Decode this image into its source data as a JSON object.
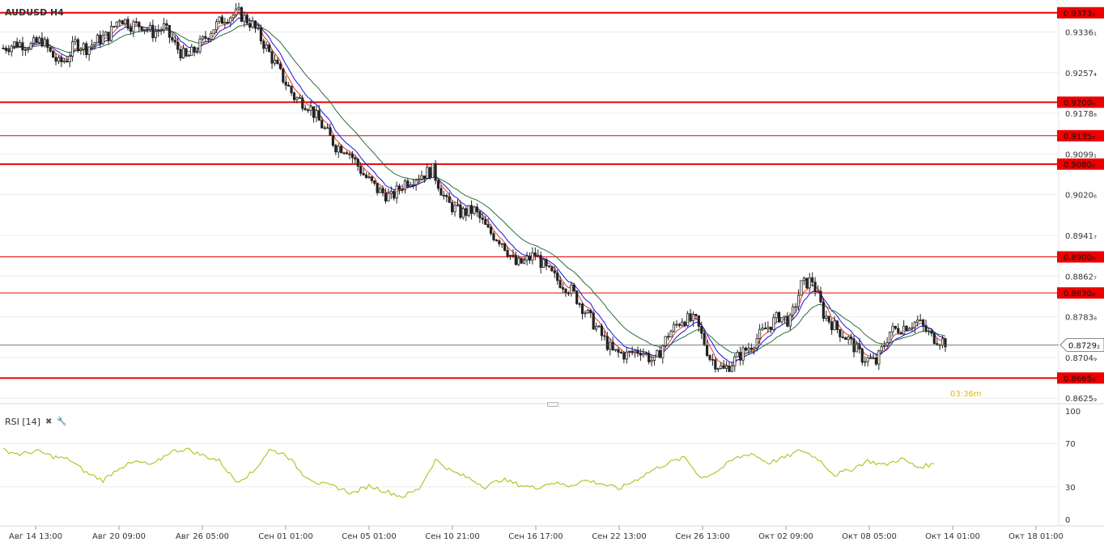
{
  "window": {
    "symbol_title": "AUDUSD H4"
  },
  "timer": "03:36m",
  "rsi": {
    "label": "RSI [14]",
    "close_icon": "close-icon",
    "settings_icon": "wrench-icon"
  },
  "colors": {
    "ma_fast": "#e8391c",
    "ma_mid": "#1414e0",
    "ma_slow": "#2a6e3a",
    "rsi_line": "#a9c41a",
    "level_line": "#ee0000",
    "candle": "#222222",
    "grid": "#ececec"
  },
  "chart_data": [
    {
      "type": "candlestick",
      "title": "AUDUSD H4",
      "ylim": [
        0.862,
        0.9392
      ],
      "y_ticks": [
        "0.9336₁",
        "0.9257₄",
        "0.9178₈",
        "0.9099₁",
        "0.9020₆",
        "0.8941₇",
        "0.8862₇",
        "0.8783₈",
        "0.8704₉",
        "0.8625₉"
      ],
      "y_tick_values": [
        0.93361,
        0.92574,
        0.91788,
        0.90991,
        0.90206,
        0.89417,
        0.88627,
        0.87838,
        0.87049,
        0.86259
      ],
      "x_labels": [
        "Авг 14 13:00",
        "Авг 20 09:00",
        "Авг 26 05:00",
        "Сен 01 01:00",
        "Сен 05 01:00",
        "Сен 10 21:00",
        "Сен 16 17:00",
        "Сен 22 13:00",
        "Сен 26 13:00",
        "Окт 02 09:00",
        "Окт 08 05:00",
        "Окт 14 01:00",
        "Окт 18 01:00"
      ],
      "levels": [
        {
          "label": "0.9373₅",
          "value": 0.93735,
          "thick": true
        },
        {
          "label": "0.9200₀",
          "value": 0.92,
          "thick": true
        },
        {
          "label": "0.9135₀",
          "value": 0.9135,
          "thick": false
        },
        {
          "label": "0.9080₀",
          "value": 0.908,
          "thick": true
        },
        {
          "label": "0.8900₀",
          "value": 0.89,
          "thick": false
        },
        {
          "label": "0.8830₀",
          "value": 0.883,
          "thick": false
        },
        {
          "label": "0.8665₀",
          "value": 0.8665,
          "thick": true
        }
      ],
      "current_price": {
        "label": "0.8729₂",
        "value": 0.87292
      },
      "price_path": [
        [
          0,
          0.9305
        ],
        [
          5,
          0.9315
        ],
        [
          10,
          0.931
        ],
        [
          14,
          0.932
        ],
        [
          17,
          0.9295
        ],
        [
          20,
          0.9275
        ],
        [
          23,
          0.9285
        ],
        [
          26,
          0.9315
        ],
        [
          30,
          0.9305
        ],
        [
          34,
          0.932
        ],
        [
          38,
          0.933
        ],
        [
          42,
          0.9365
        ],
        [
          46,
          0.935
        ],
        [
          50,
          0.935
        ],
        [
          54,
          0.9335
        ],
        [
          58,
          0.9345
        ],
        [
          62,
          0.931
        ],
        [
          66,
          0.9285
        ],
        [
          70,
          0.9305
        ],
        [
          75,
          0.934
        ],
        [
          80,
          0.9365
        ],
        [
          85,
          0.9372
        ],
        [
          90,
          0.935
        ],
        [
          95,
          0.9305
        ],
        [
          100,
          0.9255
        ],
        [
          105,
          0.921
        ],
        [
          110,
          0.9195
        ],
        [
          115,
          0.9155
        ],
        [
          120,
          0.9115
        ],
        [
          124,
          0.911
        ],
        [
          130,
          0.906
        ],
        [
          135,
          0.903
        ],
        [
          140,
          0.9015
        ],
        [
          145,
          0.9045
        ],
        [
          150,
          0.9058
        ],
        [
          155,
          0.9068
        ],
        [
          160,
          0.9005
        ],
        [
          165,
          0.8985
        ],
        [
          170,
          0.899
        ],
        [
          175,
          0.895
        ],
        [
          180,
          0.893
        ],
        [
          185,
          0.8885
        ],
        [
          188,
          0.889
        ],
        [
          192,
          0.8905
        ],
        [
          196,
          0.8875
        ],
        [
          200,
          0.8855
        ],
        [
          205,
          0.8835
        ],
        [
          210,
          0.8795
        ],
        [
          215,
          0.8755
        ],
        [
          220,
          0.8715
        ],
        [
          225,
          0.871
        ],
        [
          230,
          0.872
        ],
        [
          235,
          0.8695
        ],
        [
          240,
          0.875
        ],
        [
          245,
          0.878
        ],
        [
          250,
          0.8775
        ],
        [
          255,
          0.8705
        ],
        [
          260,
          0.868
        ],
        [
          265,
          0.8705
        ],
        [
          270,
          0.873
        ],
        [
          275,
          0.876
        ],
        [
          280,
          0.8785
        ],
        [
          284,
          0.8775
        ],
        [
          288,
          0.8845
        ],
        [
          292,
          0.8855
        ],
        [
          296,
          0.879
        ],
        [
          300,
          0.8765
        ],
        [
          305,
          0.874
        ],
        [
          310,
          0.8705
        ],
        [
          315,
          0.8695
        ],
        [
          320,
          0.8755
        ],
        [
          325,
          0.8765
        ],
        [
          330,
          0.8775
        ],
        [
          335,
          0.8745
        ],
        [
          340,
          0.8735
        ]
      ],
      "rsi_series": {
        "name": "RSI [14]",
        "ylim": [
          0,
          100
        ],
        "y_ticks": [
          "100",
          "70",
          "30",
          "0"
        ],
        "y_tick_values": [
          100,
          70,
          30,
          0
        ],
        "values": [
          [
            0,
            64
          ],
          [
            6,
            60
          ],
          [
            12,
            63
          ],
          [
            18,
            58
          ],
          [
            24,
            55
          ],
          [
            30,
            43
          ],
          [
            36,
            36
          ],
          [
            42,
            48
          ],
          [
            48,
            53
          ],
          [
            54,
            50
          ],
          [
            60,
            62
          ],
          [
            66,
            65
          ],
          [
            72,
            59
          ],
          [
            78,
            54
          ],
          [
            84,
            35
          ],
          [
            90,
            43
          ],
          [
            96,
            64
          ],
          [
            102,
            60
          ],
          [
            108,
            42
          ],
          [
            114,
            33
          ],
          [
            120,
            30
          ],
          [
            126,
            24
          ],
          [
            132,
            31
          ],
          [
            138,
            26
          ],
          [
            144,
            21
          ],
          [
            150,
            28
          ],
          [
            156,
            55
          ],
          [
            162,
            44
          ],
          [
            168,
            38
          ],
          [
            174,
            30
          ],
          [
            180,
            37
          ],
          [
            186,
            32
          ],
          [
            192,
            29
          ],
          [
            198,
            34
          ],
          [
            204,
            31
          ],
          [
            210,
            36
          ],
          [
            216,
            33
          ],
          [
            222,
            28
          ],
          [
            228,
            36
          ],
          [
            234,
            45
          ],
          [
            240,
            52
          ],
          [
            246,
            57
          ],
          [
            252,
            38
          ],
          [
            258,
            45
          ],
          [
            264,
            56
          ],
          [
            270,
            61
          ],
          [
            276,
            52
          ],
          [
            282,
            57
          ],
          [
            288,
            64
          ],
          [
            294,
            56
          ],
          [
            300,
            41
          ],
          [
            306,
            46
          ],
          [
            312,
            54
          ],
          [
            318,
            50
          ],
          [
            324,
            56
          ],
          [
            330,
            48
          ],
          [
            336,
            51
          ]
        ]
      }
    }
  ]
}
